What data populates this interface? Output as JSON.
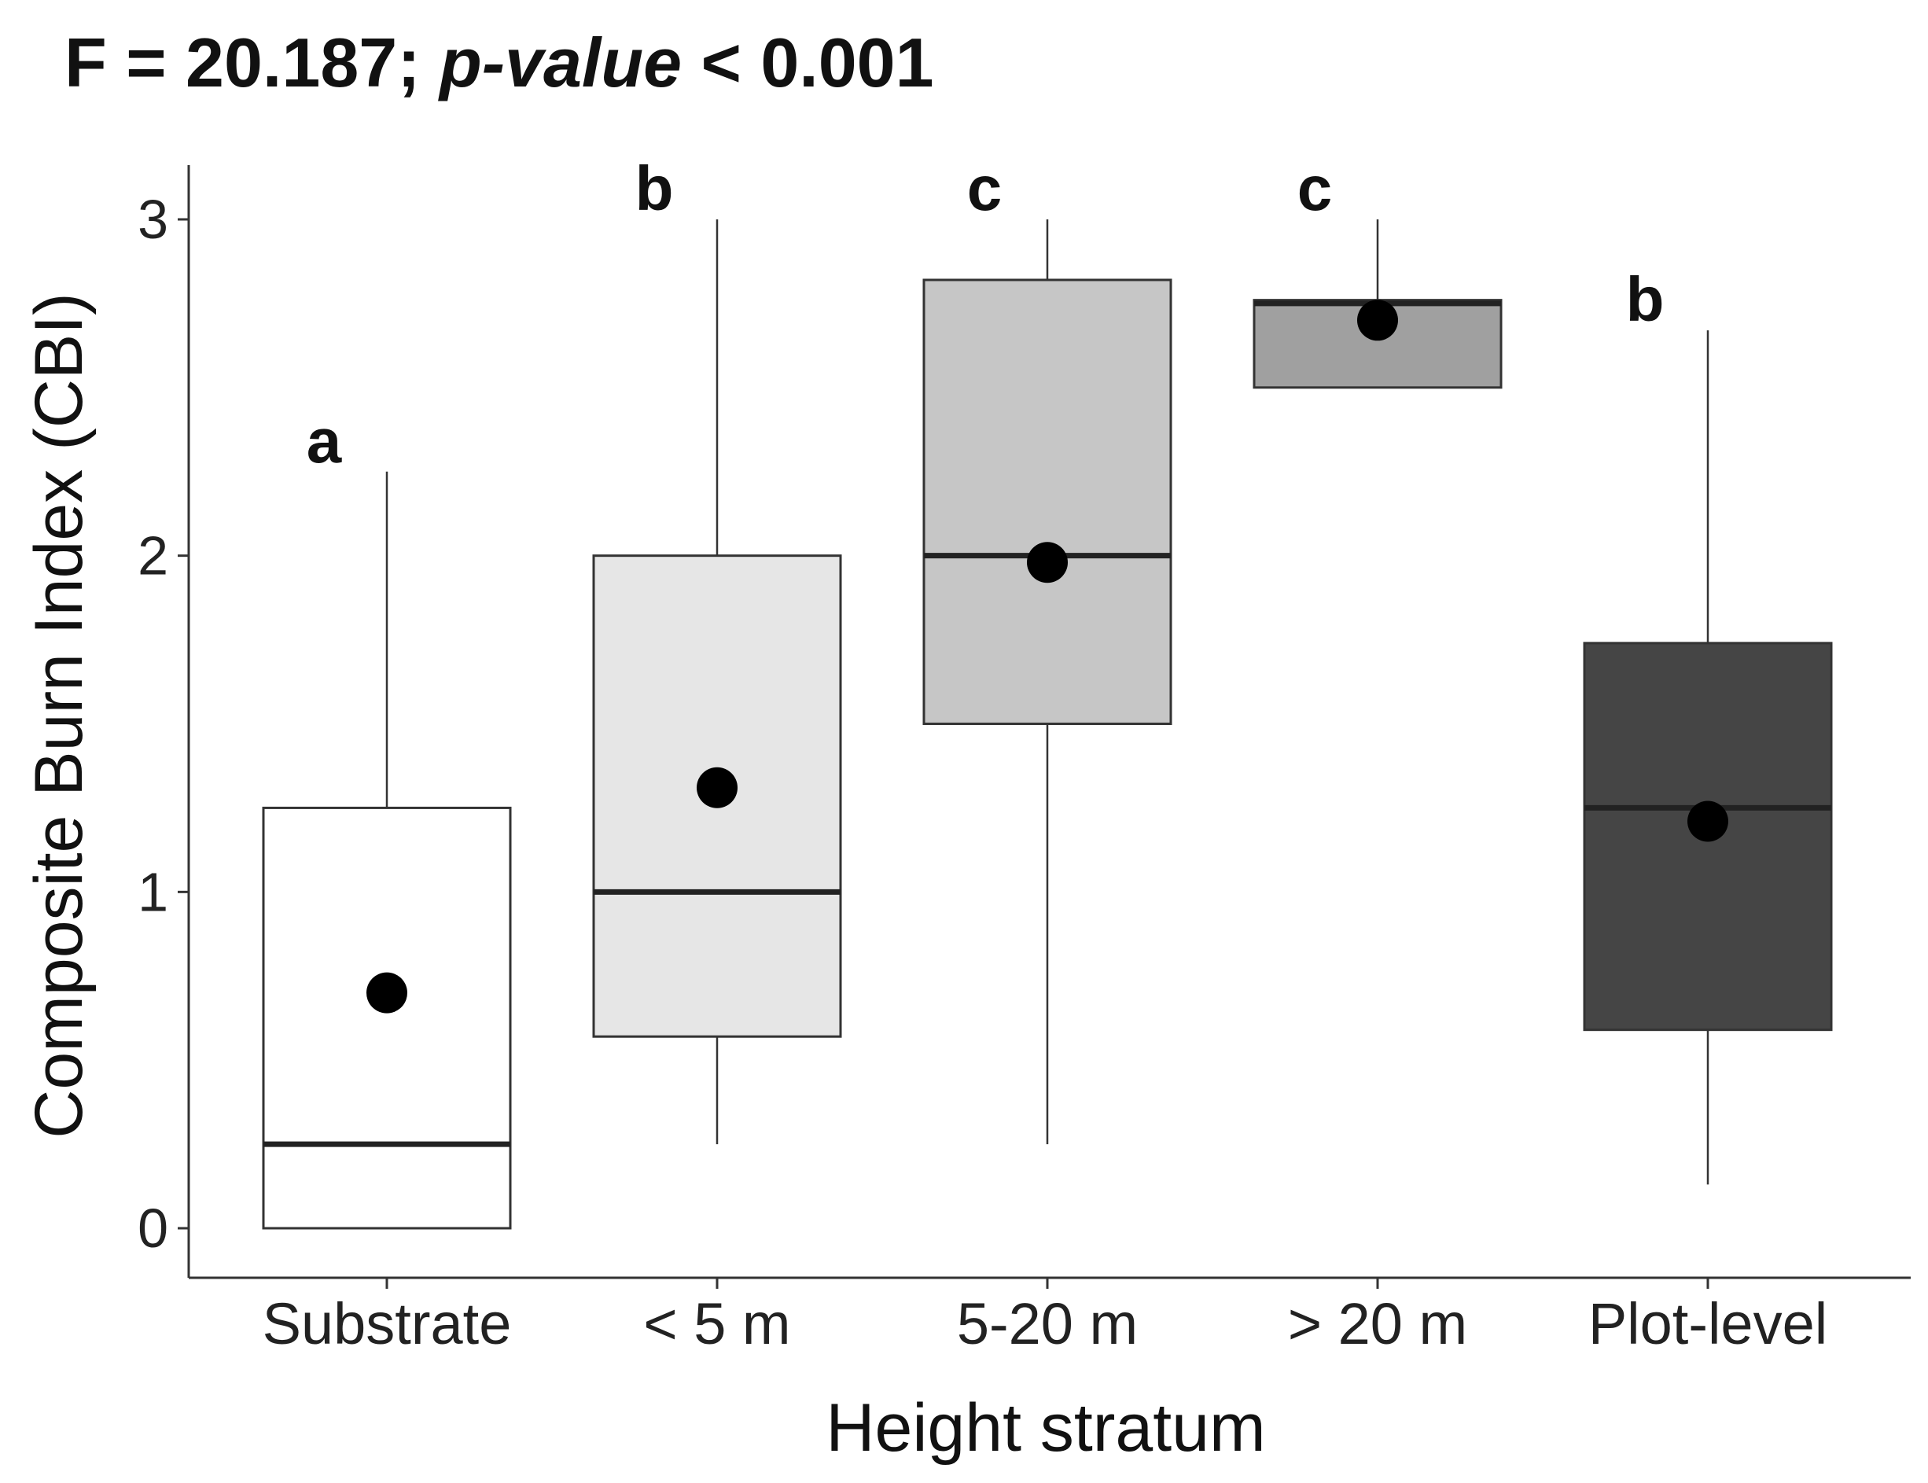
{
  "chart_data": {
    "type": "boxplot",
    "title": {
      "prefix": "F = 20.187; ",
      "italic": "p-value",
      "suffix": " < 0.001"
    },
    "xlabel": "Height stratum",
    "ylabel": "Composite Burn Index (CBI)",
    "ylim": [
      -0.15,
      3.15
    ],
    "yticks": [
      0,
      1,
      2,
      3
    ],
    "categories": [
      "Substrate",
      "< 5 m",
      "5-20 m",
      "> 20 m",
      "Plot-level"
    ],
    "boxes": [
      {
        "category": "Substrate",
        "min": 0.0,
        "q1": 0.0,
        "median": 0.25,
        "q3": 1.25,
        "max": 2.25,
        "mean": 0.7,
        "letter": "a",
        "fill": "#ffffff"
      },
      {
        "category": "< 5 m",
        "min": 0.25,
        "q1": 0.57,
        "median": 1.0,
        "q3": 2.0,
        "max": 3.0,
        "mean": 1.31,
        "letter": "b",
        "fill": "#e6e6e6"
      },
      {
        "category": "5-20 m",
        "min": 0.25,
        "q1": 1.5,
        "median": 2.0,
        "q3": 2.82,
        "max": 3.0,
        "mean": 1.98,
        "letter": "c",
        "fill": "#c6c6c6"
      },
      {
        "category": "> 20 m",
        "min": 2.5,
        "q1": 2.5,
        "median": 2.75,
        "q3": 2.76,
        "max": 3.0,
        "mean": 2.7,
        "letter": "c",
        "fill": "#a0a0a0"
      },
      {
        "category": "Plot-level",
        "min": 0.13,
        "q1": 0.59,
        "median": 1.25,
        "q3": 1.74,
        "max": 2.67,
        "mean": 1.21,
        "letter": "b",
        "fill": "#454545"
      }
    ],
    "grid": false,
    "legend": "none"
  }
}
